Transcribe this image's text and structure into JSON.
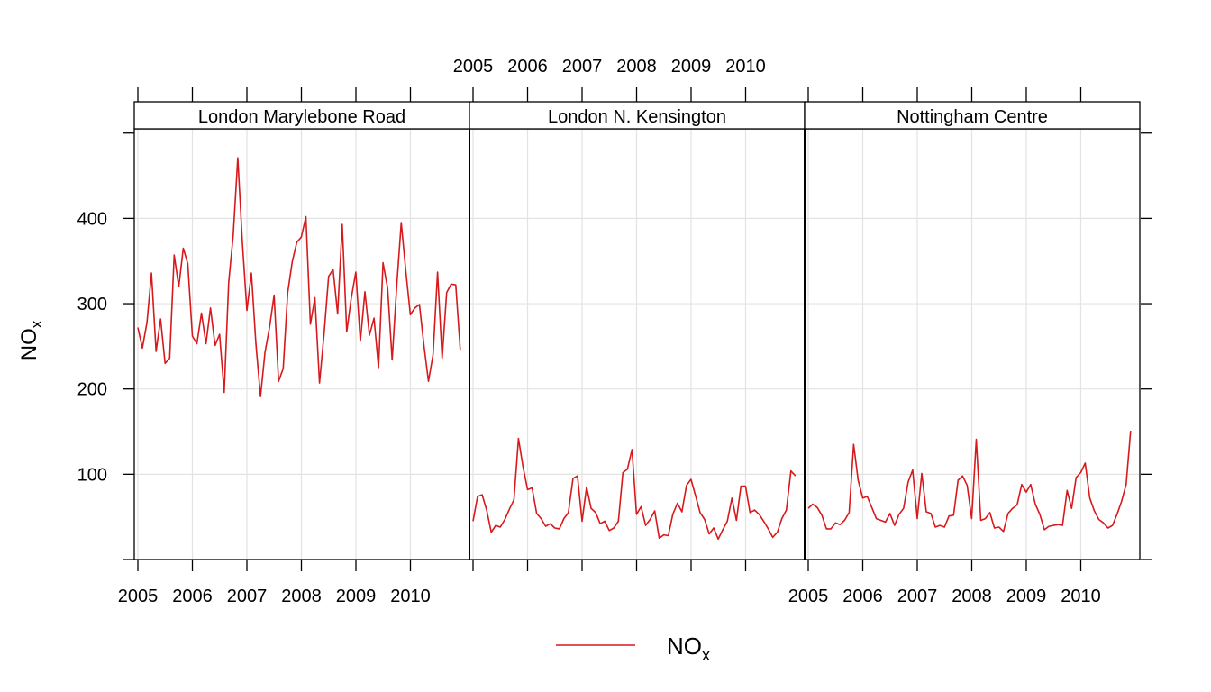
{
  "chart_data": {
    "type": "line",
    "ylabel_base": "NO",
    "ylabel_sub": "x",
    "legend_base": "NO",
    "legend_sub": "x",
    "legend_placement": "bottom",
    "series_color": "#d7191c",
    "grid_color": "#e3e3e3",
    "ylim": [
      0,
      505
    ],
    "y_ticks": [
      "100",
      "200",
      "300",
      "400"
    ],
    "xlim": [
      2005.0,
      2011.0
    ],
    "x_tick_labels": [
      "2005",
      "2006",
      "2007",
      "2008",
      "2009",
      "2010"
    ],
    "grid": true,
    "panels": [
      {
        "name": "London Marylebone Road",
        "x_start": 2005.0,
        "x_step": 0.0833,
        "values": [
          272,
          248,
          278,
          336,
          244,
          282,
          230,
          236,
          357,
          320,
          365,
          347,
          262,
          253,
          289,
          253,
          295,
          251,
          264,
          196,
          325,
          380,
          471,
          373,
          292,
          336,
          253,
          191,
          243,
          272,
          310,
          209,
          224,
          313,
          349,
          372,
          378,
          402,
          276,
          307,
          207,
          264,
          332,
          340,
          288,
          393,
          267,
          307,
          337,
          256,
          314,
          263,
          283,
          225,
          348,
          318,
          234,
          321,
          395,
          339,
          287,
          295,
          299,
          251,
          209,
          240,
          337,
          236,
          313,
          323,
          322,
          246
        ]
      },
      {
        "name": "London N. Kensington",
        "x_start": 2005.0,
        "x_step": 0.0833,
        "values": [
          45,
          74,
          76,
          58,
          32,
          40,
          38,
          47,
          59,
          70,
          142,
          109,
          82,
          84,
          54,
          48,
          39,
          42,
          37,
          36,
          48,
          55,
          95,
          98,
          45,
          85,
          60,
          55,
          42,
          45,
          34,
          37,
          45,
          102,
          106,
          129,
          53,
          62,
          40,
          47,
          57,
          25,
          29,
          28,
          53,
          66,
          56,
          87,
          94,
          75,
          55,
          47,
          30,
          37,
          24,
          35,
          45,
          72,
          46,
          86,
          86,
          55,
          58,
          53,
          45,
          36,
          26,
          32,
          48,
          58,
          104,
          98
        ]
      },
      {
        "name": "Nottingham Centre",
        "x_start": 2005.0,
        "x_step": 0.0833,
        "values": [
          60,
          65,
          61,
          52,
          36,
          36,
          43,
          41,
          46,
          55,
          135,
          93,
          72,
          74,
          61,
          48,
          46,
          44,
          54,
          40,
          53,
          60,
          91,
          105,
          48,
          101,
          56,
          54,
          38,
          40,
          38,
          51,
          52,
          93,
          98,
          87,
          48,
          141,
          46,
          48,
          55,
          37,
          38,
          33,
          54,
          60,
          64,
          88,
          79,
          88,
          65,
          53,
          35,
          39,
          40,
          41,
          40,
          81,
          60,
          96,
          102,
          113,
          72,
          57,
          47,
          43,
          37,
          40,
          53,
          68,
          88,
          151
        ]
      }
    ]
  }
}
